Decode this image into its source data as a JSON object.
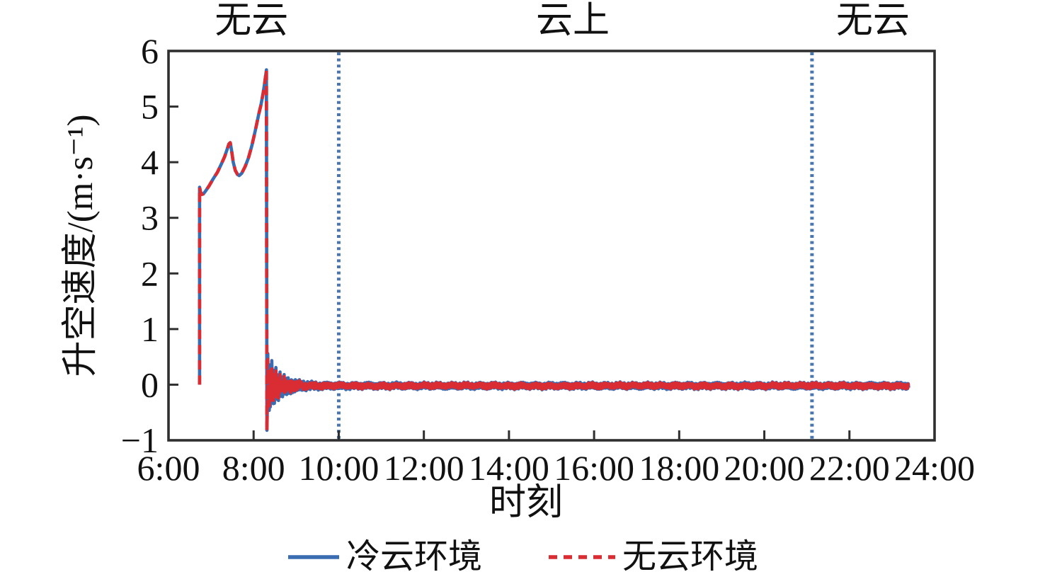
{
  "page": {
    "background": "#ffffff"
  },
  "chart": {
    "frame_color": "#2f2f2f",
    "text_color": "#111111",
    "regions": {
      "divider_color": "#4a76ad",
      "dividers_t": [
        10.0,
        21.12
      ],
      "labels": [
        {
          "text": "无云",
          "t": 7.95
        },
        {
          "text": "云上",
          "t": 15.5
        },
        {
          "text": "无云",
          "t": 22.55
        }
      ]
    },
    "axes": {
      "x": {
        "label": "时刻",
        "range": [
          6,
          24
        ],
        "tick_values": [
          6,
          8,
          10,
          12,
          14,
          16,
          18,
          20,
          22,
          24
        ],
        "tick_labels": [
          "6:00",
          "8:00",
          "10:00",
          "12:00",
          "14:00",
          "16:00",
          "18:00",
          "20:00",
          "22:00",
          "24:00"
        ]
      },
      "y": {
        "label": "升空速度/(m·s⁻¹)",
        "range": [
          -1,
          6
        ],
        "tick_values": [
          -1,
          0,
          1,
          2,
          3,
          4,
          5,
          6
        ],
        "tick_labels": [
          "−1",
          "0",
          "1",
          "2",
          "3",
          "4",
          "5",
          "6"
        ]
      }
    }
  },
  "legend": {
    "items": [
      {
        "label": "冷云环境",
        "color": "#3a6cb2",
        "style": "solid"
      },
      {
        "label": "无云环境",
        "color": "#d92c33",
        "style": "dashed"
      }
    ]
  },
  "chart_data": {
    "type": "line",
    "title": "",
    "xlabel": "时刻",
    "ylabel": "升空速度/(m·s⁻¹)",
    "xlim": [
      6,
      24
    ],
    "ylim": [
      -1,
      6
    ],
    "x_tick_labels": [
      "6:00",
      "8:00",
      "10:00",
      "12:00",
      "14:00",
      "16:00",
      "18:00",
      "20:00",
      "22:00",
      "24:00"
    ],
    "y_tick_values": [
      -1,
      0,
      1,
      2,
      3,
      4,
      5,
      6
    ],
    "grid": false,
    "legend_position": "bottom-center",
    "annotations": {
      "top_region_labels": [
        "无云",
        "云上",
        "无云"
      ],
      "region_boundary_times": [
        "10:00",
        "21:07"
      ]
    },
    "overlap_note": "冷云环境与无云环境两条曲线几乎完全重合",
    "series": [
      {
        "name": "冷云环境",
        "color": "#3a6cb2",
        "line_style": "solid",
        "points": "shared_curve"
      },
      {
        "name": "无云环境",
        "color": "#d92c33",
        "line_style": "dashed",
        "points": "shared_curve"
      }
    ],
    "shared_curve": {
      "x_unit": "hour_of_day",
      "pre_oscillation_points": [
        [
          6.73,
          0.0
        ],
        [
          6.73,
          3.55
        ],
        [
          6.75,
          3.47
        ],
        [
          6.78,
          3.42
        ],
        [
          6.82,
          3.43
        ],
        [
          6.87,
          3.48
        ],
        [
          6.95,
          3.57
        ],
        [
          7.05,
          3.7
        ],
        [
          7.15,
          3.82
        ],
        [
          7.25,
          3.98
        ],
        [
          7.32,
          4.1
        ],
        [
          7.38,
          4.24
        ],
        [
          7.42,
          4.33
        ],
        [
          7.45,
          4.35
        ],
        [
          7.48,
          4.22
        ],
        [
          7.52,
          4.0
        ],
        [
          7.57,
          3.85
        ],
        [
          7.62,
          3.78
        ],
        [
          7.66,
          3.76
        ],
        [
          7.72,
          3.8
        ],
        [
          7.8,
          3.92
        ],
        [
          7.88,
          4.08
        ],
        [
          7.96,
          4.3
        ],
        [
          8.04,
          4.57
        ],
        [
          8.12,
          4.86
        ],
        [
          8.17,
          5.02
        ],
        [
          8.22,
          5.22
        ],
        [
          8.26,
          5.43
        ],
        [
          8.29,
          5.6
        ],
        [
          8.3,
          5.66
        ],
        [
          8.312,
          -0.82
        ]
      ],
      "oscillation": {
        "t_start": 8.32,
        "t_end": 23.4,
        "center": -0.02,
        "base_amplitude": 0.06,
        "decay_amplitude": 0.55,
        "decay_tau_hours": 0.3,
        "zigzag_step_hours": 0.012
      }
    }
  }
}
